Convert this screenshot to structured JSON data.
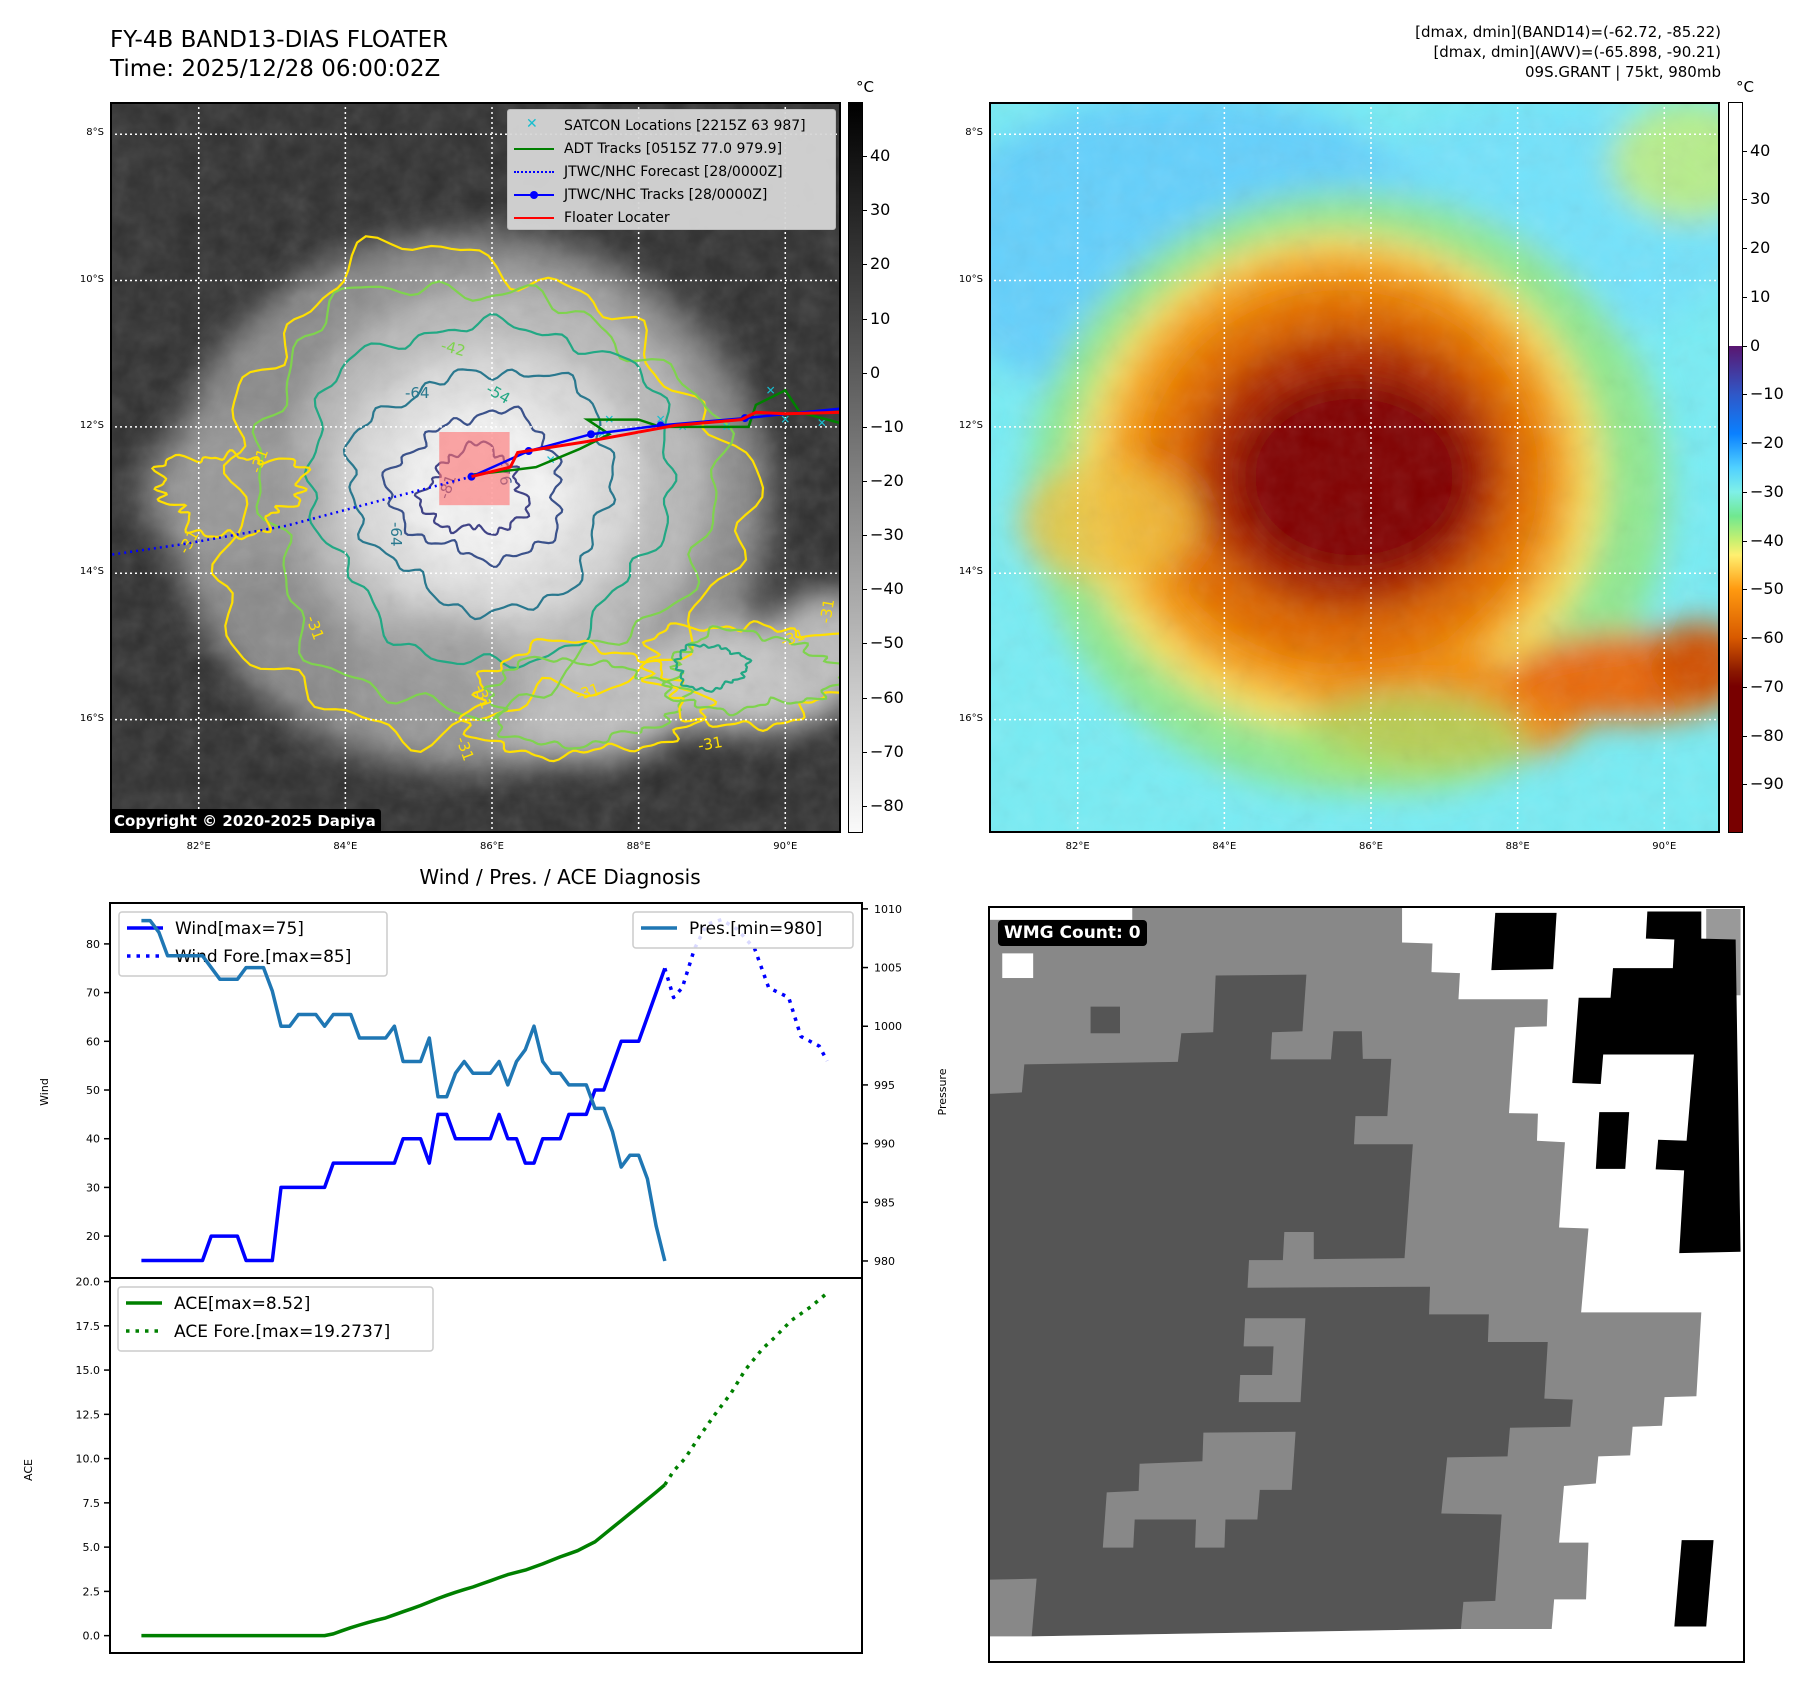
{
  "header": {
    "title_line1": "FY-4B BAND13-DIAS FLOATER",
    "title_line2": "Time: 2025/12/28 06:00:02Z",
    "info_line1": "[dmax, dmin](BAND14)=(-62.72, -85.22)",
    "info_line2": "[dmax, dmin](AWV)=(-65.898, -90.21)",
    "info_line3": "09S.GRANT | 75kt, 980mb"
  },
  "map": {
    "extent": {
      "lon": [
        80.79,
        90.76
      ],
      "lat_south": [
        7.56,
        17.55
      ]
    },
    "lat_labels": [
      "8°S",
      "10°S",
      "12°S",
      "14°S",
      "16°S"
    ],
    "lat_values": [
      8,
      10,
      12,
      14,
      16
    ],
    "lon_labels": [
      "82°E",
      "84°E",
      "86°E",
      "88°E",
      "90°E"
    ],
    "lon_values": [
      82,
      84,
      86,
      88,
      90
    ],
    "legend": [
      {
        "label": "SATCON Locations [2215Z 63 987]",
        "color": "#17becf",
        "icon": "x-marker-icon"
      },
      {
        "label": "ADT Tracks [0515Z 77.0 979.9]",
        "color": "#008000",
        "icon": "line-icon"
      },
      {
        "label": "JTWC/NHC Forecast [28/0000Z]",
        "color": "#0000ff",
        "icon": "dotted-line-icon"
      },
      {
        "label": "JTWC/NHC Tracks [28/0000Z]",
        "color": "#0000ff",
        "icon": "line-dot-icon"
      },
      {
        "label": "Floater Locater",
        "color": "#ff0000",
        "icon": "line-icon"
      }
    ],
    "copyright": "Copyright © 2020-2025 Dapiya",
    "contour_labels": [
      "-64",
      "-54",
      "-64",
      "-76",
      "-81",
      "-31",
      "-31",
      "-31",
      "-31",
      "-31",
      "-31",
      "-31",
      "-31",
      "-31",
      "-42"
    ],
    "tracks": {
      "jtwc": [
        [
          85.72,
          12.68
        ],
        [
          86.5,
          12.33
        ],
        [
          87.35,
          12.1
        ],
        [
          88.3,
          11.98
        ],
        [
          89.45,
          11.88
        ],
        [
          90.76,
          11.75
        ]
      ],
      "jtwc_forecast": [
        [
          85.72,
          12.68
        ],
        [
          84.5,
          13.0
        ],
        [
          83.2,
          13.35
        ],
        [
          81.8,
          13.6
        ],
        [
          80.79,
          13.75
        ]
      ],
      "floater": [
        [
          85.72,
          12.68
        ],
        [
          86.25,
          12.55
        ],
        [
          86.35,
          12.35
        ],
        [
          87.3,
          12.2
        ],
        [
          88.5,
          11.98
        ],
        [
          89.4,
          11.9
        ],
        [
          89.6,
          11.8
        ],
        [
          90.0,
          11.82
        ],
        [
          90.76,
          11.8
        ]
      ],
      "adt": [
        [
          85.75,
          12.65
        ],
        [
          86.2,
          12.6
        ],
        [
          86.6,
          12.55
        ],
        [
          87.2,
          12.3
        ],
        [
          87.6,
          12.1
        ],
        [
          87.3,
          11.9
        ],
        [
          88.0,
          11.9
        ],
        [
          88.3,
          12.0
        ],
        [
          89.5,
          12.0
        ],
        [
          89.6,
          11.7
        ],
        [
          90.0,
          11.5
        ],
        [
          90.2,
          11.8
        ],
        [
          90.76,
          11.95
        ]
      ],
      "satcon": [
        [
          86.8,
          12.45
        ],
        [
          87.5,
          12.1
        ],
        [
          87.6,
          11.9
        ],
        [
          88.3,
          11.9
        ],
        [
          88.6,
          12.0
        ],
        [
          89.2,
          12.0
        ],
        [
          89.8,
          11.5
        ],
        [
          90.0,
          11.9
        ],
        [
          90.5,
          11.95
        ]
      ],
      "floater_box": {
        "lon": [
          85.28,
          86.24
        ],
        "lat_south": [
          12.07,
          13.07
        ]
      }
    }
  },
  "colorbar_left": {
    "unit": "°C",
    "range": [
      -85,
      50
    ],
    "ticks": [
      40,
      30,
      20,
      10,
      0,
      -10,
      -20,
      -30,
      -40,
      -50,
      -60,
      -70,
      -80
    ],
    "tick_labels": [
      "40",
      "30",
      "20",
      "10",
      "0",
      "−10",
      "−20",
      "−30",
      "−40",
      "−50",
      "−60",
      "−70",
      "−80"
    ]
  },
  "colorbar_right": {
    "unit": "°C",
    "range": [
      -100,
      50
    ],
    "ticks": [
      40,
      30,
      20,
      10,
      0,
      -10,
      -20,
      -30,
      -40,
      -50,
      -60,
      -70,
      -80,
      -90
    ],
    "tick_labels": [
      "40",
      "30",
      "20",
      "10",
      "0",
      "−10",
      "−20",
      "−30",
      "−40",
      "−50",
      "−60",
      "−70",
      "−80",
      "−90"
    ]
  },
  "wmg": {
    "label": "WMG Count: 0"
  },
  "chart_data": [
    {
      "type": "line",
      "title": "Wind / Pres. / ACE Diagnosis",
      "xlabel": "",
      "ylabel": "Wind",
      "y2label": "Pressure",
      "xlim": [
        -3.6,
        82.6
      ],
      "ylim": [
        11.4,
        88.4
      ],
      "y2lim": [
        978.55,
        1010.5
      ],
      "yticks": [
        20,
        30,
        40,
        50,
        60,
        70,
        80
      ],
      "ytick_labels": [
        "20",
        "30",
        "40",
        "50",
        "60",
        "70",
        "80"
      ],
      "y2ticks": [
        980,
        985,
        990,
        995,
        1000,
        1005,
        1010
      ],
      "y2tick_labels": [
        "980",
        "985",
        "990",
        "995",
        "1000",
        "1005",
        "1010"
      ],
      "series": [
        {
          "name": "Wind[max=75]",
          "color": "#0000ff",
          "style": "solid",
          "axis": "left",
          "values": [
            15,
            15,
            15,
            15,
            15,
            15,
            15,
            15,
            20,
            20,
            20,
            20,
            15,
            15,
            15,
            15,
            30,
            30,
            30,
            30,
            30,
            30,
            35,
            35,
            35,
            35,
            35,
            35,
            35,
            35,
            40,
            40,
            40,
            35,
            45,
            45,
            40,
            40,
            40,
            40,
            40,
            45,
            40,
            40,
            35,
            35,
            40,
            40,
            40,
            45,
            45,
            45,
            50,
            50,
            55,
            60,
            60,
            60,
            65,
            70,
            75
          ]
        },
        {
          "name": "Wind Fore.[max=85]",
          "color": "#0000ff",
          "style": "dotted",
          "axis": "left",
          "x": [
            60,
            61,
            62,
            63.4,
            64.8,
            66.5,
            68.3,
            70.3,
            71.9,
            74.2,
            75.6,
            77.7,
            78.6
          ],
          "values": [
            75,
            69,
            71,
            79,
            84,
            85,
            83,
            79,
            71,
            69,
            61,
            59,
            56
          ]
        },
        {
          "name": "Pres.[min=980]",
          "color": "#1f77b4",
          "style": "solid",
          "axis": "right",
          "values": [
            1009,
            1009,
            1008,
            1006,
            1006,
            1006,
            1006,
            1006,
            1005,
            1004,
            1004,
            1004,
            1005,
            1005,
            1005,
            1003,
            1000,
            1000,
            1001,
            1001,
            1001,
            1000,
            1001,
            1001,
            1001,
            999,
            999,
            999,
            999,
            1000,
            997,
            997,
            997,
            999,
            994,
            994,
            996,
            997,
            996,
            996,
            996,
            997,
            995,
            997,
            998,
            1000,
            997,
            996,
            996,
            995,
            995,
            995,
            993,
            993,
            991,
            988,
            989,
            989,
            987,
            983,
            980
          ]
        }
      ],
      "legend_left": [
        "Wind[max=75]",
        "Wind Fore.[max=85]"
      ],
      "legend_right": [
        "Pres.[min=980]"
      ]
    },
    {
      "type": "line",
      "ylabel": "ACE",
      "xlim": [
        -3.6,
        82.6
      ],
      "ylim": [
        -0.98,
        20.2
      ],
      "yticks": [
        0,
        2.5,
        5,
        7.5,
        10,
        12.5,
        15,
        17.5,
        20
      ],
      "ytick_labels": [
        "0.0",
        "2.5",
        "5.0",
        "7.5",
        "10.0",
        "12.5",
        "15.0",
        "17.5",
        "20.0"
      ],
      "series": [
        {
          "name": "ACE[max=8.52]",
          "color": "#008000",
          "style": "solid",
          "values": [
            0,
            0,
            0,
            0,
            0,
            0,
            0,
            0,
            0,
            0,
            0,
            0,
            0,
            0,
            0,
            0,
            0,
            0,
            0,
            0,
            0,
            0,
            0.1,
            0.28,
            0.45,
            0.6,
            0.75,
            0.88,
            1.0,
            1.18,
            1.35,
            1.52,
            1.7,
            1.9,
            2.1,
            2.28,
            2.45,
            2.6,
            2.75,
            2.92,
            3.1,
            3.28,
            3.45,
            3.58,
            3.7,
            3.88,
            4.05,
            4.25,
            4.45,
            4.62,
            4.8,
            5.05,
            5.3,
            5.7,
            6.1,
            6.5,
            6.9,
            7.3,
            7.7,
            8.1,
            8.52
          ]
        },
        {
          "name": "ACE Fore.[max=19.2737]",
          "color": "#008000",
          "style": "dotted",
          "x": [
            60,
            61,
            62.3,
            63.9,
            65.6,
            67.6,
            69.2,
            71.2,
            72.5,
            74.5,
            76.8,
            78.4
          ],
          "values": [
            8.52,
            9.3,
            10.0,
            11.2,
            12.4,
            13.7,
            15.0,
            16.2,
            16.8,
            17.8,
            18.6,
            19.27
          ]
        }
      ],
      "legend": [
        "ACE[max=8.52]",
        "ACE Fore.[max=19.2737]"
      ]
    }
  ]
}
